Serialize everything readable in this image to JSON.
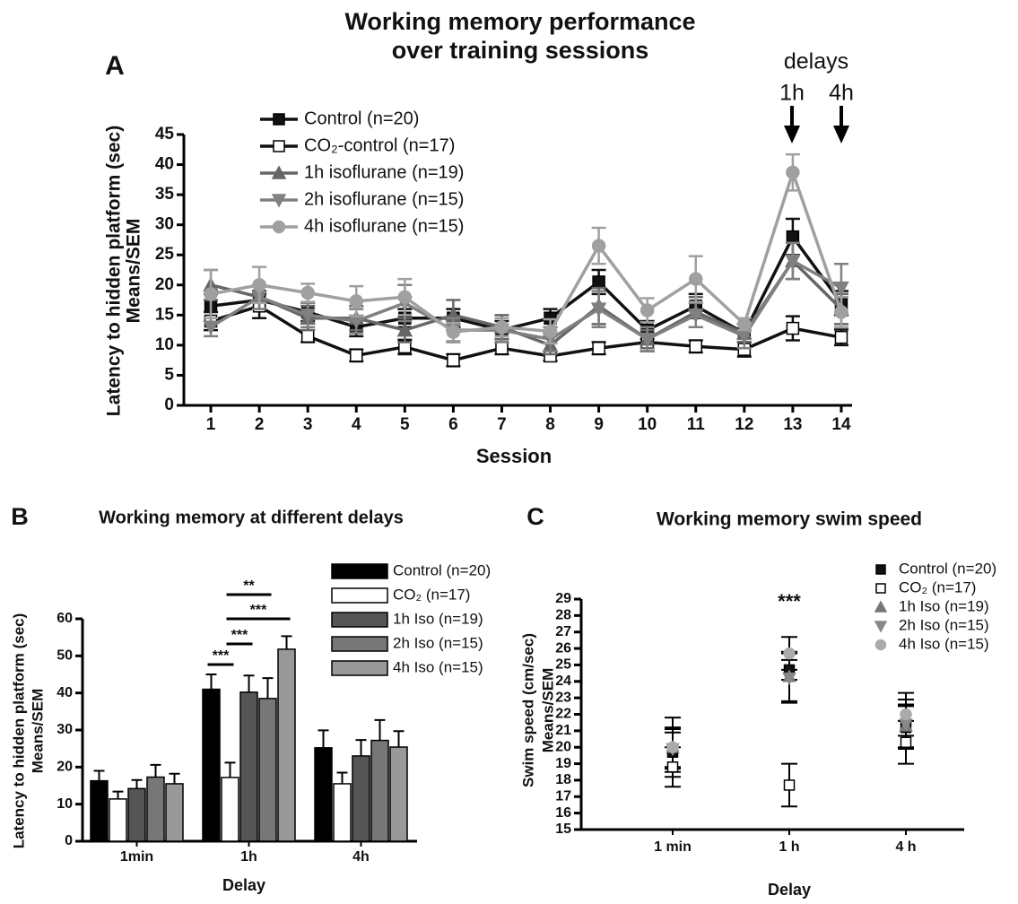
{
  "chart_data": [
    {
      "type": "line",
      "panel": "A",
      "title": [
        "Working memory performance",
        "over training sessions"
      ],
      "x_label": "Session",
      "y_label": [
        "Latency to hidden platform (sec)",
        "Means/SEM"
      ],
      "annotations": [
        "delays",
        "1h",
        "4h"
      ],
      "x": [
        1,
        2,
        3,
        4,
        5,
        6,
        7,
        8,
        9,
        10,
        11,
        12,
        13,
        14
      ],
      "xlim": [
        0.5,
        14.5
      ],
      "xticks": [
        1,
        2,
        3,
        4,
        5,
        6,
        7,
        8,
        9,
        10,
        11,
        12,
        13,
        14
      ],
      "ylim": [
        0,
        45
      ],
      "yticks": [
        0,
        5,
        10,
        15,
        20,
        25,
        30,
        35,
        40,
        45
      ],
      "series": [
        {
          "name": "Control (n=20)",
          "color": "#111111",
          "marker": "square",
          "values": [
            16.5,
            17.5,
            15.5,
            13,
            14.5,
            14.5,
            12.5,
            14.5,
            20.5,
            12.5,
            16.5,
            12,
            28,
            17
          ],
          "errors": [
            2,
            1.5,
            1.5,
            1.5,
            1.5,
            1.5,
            1.5,
            1.5,
            2,
            1.5,
            2,
            1.5,
            3,
            2
          ]
        },
        {
          "name": "CO₂-control (n=17)",
          "color": "#111111",
          "marker": "open-square",
          "values": [
            14,
            16.5,
            11.5,
            8.3,
            9.7,
            7.5,
            9.5,
            8.2,
            9.5,
            10.5,
            9.8,
            9.3,
            12.8,
            11.3
          ],
          "errors": [
            1.5,
            2,
            1,
            1,
            1.2,
            1,
            1,
            0.8,
            1,
            1.5,
            1,
            1.2,
            2,
            1.3
          ]
        },
        {
          "name": "1h isoflurane (n=19)",
          "color": "#666666",
          "marker": "triangle-up",
          "values": [
            20,
            18,
            14.5,
            14.5,
            12.5,
            15,
            13,
            10,
            16.5,
            11,
            15.5,
            12,
            24,
            16
          ],
          "errors": [
            2.5,
            2,
            2,
            2,
            2,
            2.5,
            2,
            1.5,
            3,
            1.5,
            2.5,
            1.5,
            3,
            2.5
          ]
        },
        {
          "name": "2h isoflurane (n=15)",
          "color": "#808080",
          "marker": "triangle-down",
          "values": [
            13,
            18,
            15,
            14,
            17,
            12.5,
            12.5,
            11,
            16,
            11,
            15,
            11.5,
            24,
            19.5
          ],
          "errors": [
            1.5,
            2,
            2,
            2,
            3,
            2,
            2,
            2,
            3,
            2,
            2,
            2,
            3,
            4
          ]
        },
        {
          "name": "4h isoflurane (n=15)",
          "color": "#a0a0a0",
          "marker": "circle",
          "values": [
            18.5,
            20,
            18.7,
            17.3,
            18,
            12.2,
            13,
            12.3,
            26.5,
            15.8,
            21,
            13.5,
            38.7,
            15.5
          ],
          "errors": [
            4,
            3,
            1.5,
            2.5,
            3,
            1.5,
            1.5,
            2,
            3,
            2,
            3.8,
            1,
            3,
            2.5
          ]
        }
      ]
    },
    {
      "type": "bar",
      "panel": "B",
      "title": "Working memory at different delays",
      "x_label": "Delay",
      "y_label": [
        "Latency to hidden platform (sec)",
        "Means/SEM"
      ],
      "categories": [
        "1min",
        "1h",
        "4h"
      ],
      "ylim": [
        0,
        60
      ],
      "yticks": [
        0,
        10,
        20,
        30,
        40,
        50,
        60
      ],
      "annotations": [
        "**",
        "***",
        "***",
        "***"
      ],
      "series": [
        {
          "name": "Control (n=20)",
          "color": "#000000",
          "values": [
            16.3,
            41,
            25.2
          ],
          "errors": [
            2.7,
            4,
            4.7
          ]
        },
        {
          "name": "CO₂ (n=17)",
          "color": "#ffffff",
          "values": [
            11.4,
            17.2,
            15.5
          ],
          "errors": [
            2,
            4,
            3
          ]
        },
        {
          "name": "1h Iso (n=19)",
          "color": "#555555",
          "values": [
            14.2,
            40.2,
            23
          ],
          "errors": [
            2.3,
            4.5,
            4.3
          ]
        },
        {
          "name": "2h Iso (n=15)",
          "color": "#777777",
          "values": [
            17.3,
            38.5,
            27.2
          ],
          "errors": [
            3.3,
            5.5,
            5.5
          ]
        },
        {
          "name": "4h Iso (n=15)",
          "color": "#999999",
          "values": [
            15.5,
            51.8,
            25.4
          ],
          "errors": [
            2.7,
            3.5,
            4.3
          ]
        }
      ]
    },
    {
      "type": "scatter",
      "panel": "C",
      "title": "Working memory swim speed",
      "x_label": "Delay",
      "y_label": [
        "Swim speed (cm/sec)",
        "Means/SEM"
      ],
      "categories": [
        "1 min",
        "1 h",
        "4 h"
      ],
      "ylim": [
        15,
        29
      ],
      "yticks": [
        15,
        16,
        17,
        18,
        19,
        20,
        21,
        22,
        23,
        24,
        25,
        26,
        27,
        28,
        29
      ],
      "annotations": [
        "***"
      ],
      "series": [
        {
          "name": "Control (n=20)",
          "color": "#111111",
          "marker": "square",
          "values": [
            19.7,
            24.7,
            21.2
          ],
          "errors": [
            1.2,
            0.6,
            1.3
          ]
        },
        {
          "name": "CO₂ (n=17)",
          "color": "#111111",
          "marker": "open-square",
          "values": [
            18.8,
            17.7,
            20.3
          ],
          "errors": [
            1.2,
            1.3,
            1.3
          ]
        },
        {
          "name": "1h Iso (n=19)",
          "color": "#777777",
          "marker": "triangle-up",
          "values": [
            20,
            24.3,
            21.3
          ],
          "errors": [
            1.2,
            1.5,
            1.3
          ]
        },
        {
          "name": "2h Iso (n=15)",
          "color": "#888888",
          "marker": "triangle-down",
          "values": [
            19.9,
            24.2,
            21.4
          ],
          "errors": [
            1.2,
            1.5,
            1.5
          ]
        },
        {
          "name": "4h Iso (n=15)",
          "color": "#aaaaaa",
          "marker": "circle",
          "values": [
            20,
            25.7,
            22
          ],
          "errors": [
            1.8,
            1,
            1.3
          ]
        }
      ]
    }
  ]
}
